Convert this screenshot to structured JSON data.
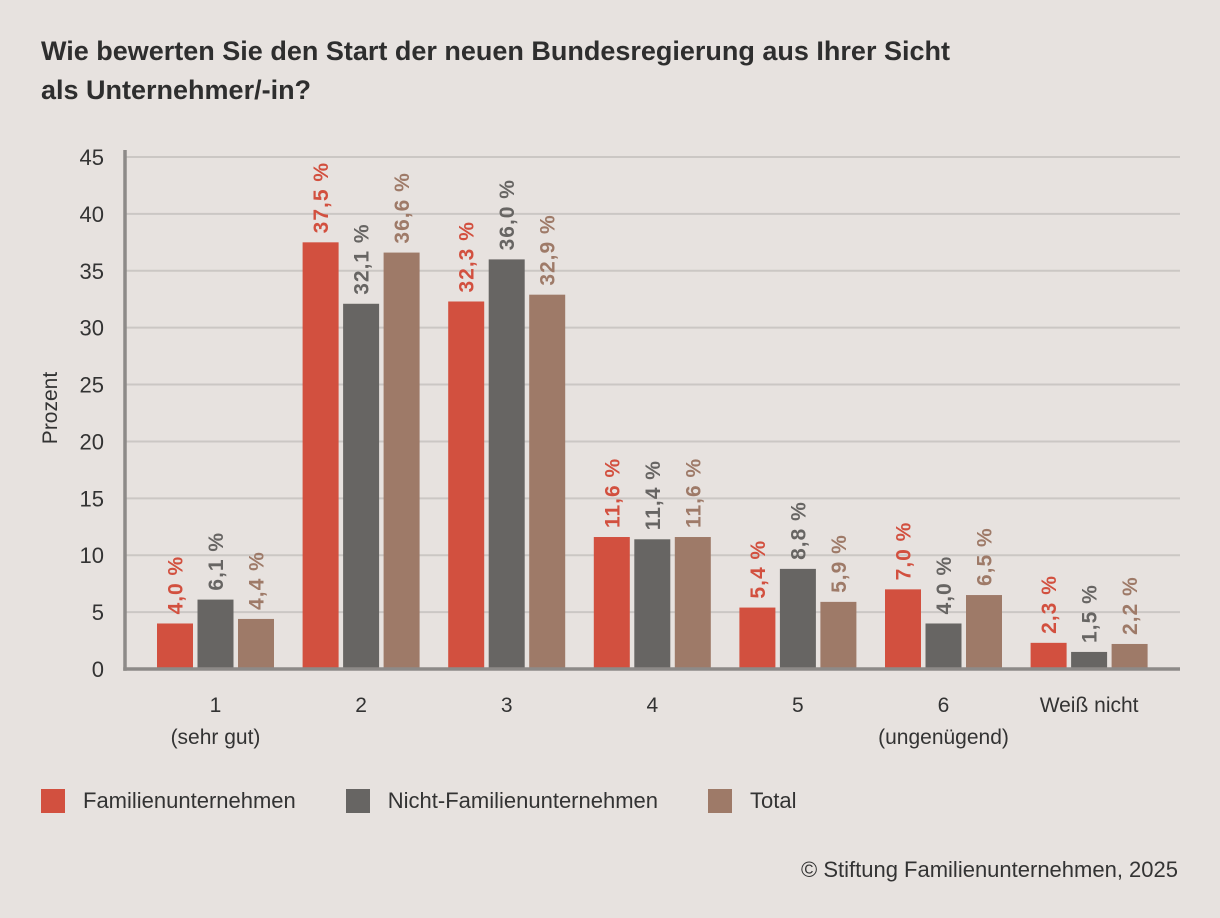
{
  "colors": {
    "background": "#e7e2df",
    "text": "#333333",
    "grid": "#cbc7c4",
    "axis": "#8d8a88"
  },
  "chart_data": {
    "type": "bar",
    "title": "Wie bewerten Sie den Start der neuen Bundesregierung aus Ihrer Sicht als Unternehmer/-in?",
    "ylabel": "Prozent",
    "ylim": [
      0,
      45
    ],
    "yticks": [
      0,
      5,
      10,
      15,
      20,
      25,
      30,
      35,
      40,
      45
    ],
    "grid": true,
    "legend_position": "bottom",
    "categories": [
      "1",
      "2",
      "3",
      "4",
      "5",
      "6",
      "Weiß nicht"
    ],
    "category_sublabels": [
      "(sehr gut)",
      "",
      "",
      "",
      "",
      "(ungenügend)",
      ""
    ],
    "series": [
      {
        "name": "Familienunternehmen",
        "color": "#d2503f",
        "values": [
          4.0,
          37.5,
          32.3,
          11.6,
          5.4,
          7.0,
          2.3
        ],
        "labels": [
          "4,0 %",
          "37,5 %",
          "32,3 %",
          "11,6 %",
          "5,4 %",
          "7,0 %",
          "2,3 %"
        ]
      },
      {
        "name": "Nicht-Familienunternehmen",
        "color": "#676563",
        "values": [
          6.1,
          32.1,
          36.0,
          11.4,
          8.8,
          4.0,
          1.5
        ],
        "labels": [
          "6,1 %",
          "32,1 %",
          "36,0 %",
          "11,4 %",
          "8,8 %",
          "4,0 %",
          "1,5 %"
        ]
      },
      {
        "name": "Total",
        "color": "#9e7a68",
        "values": [
          4.4,
          36.6,
          32.9,
          11.6,
          5.9,
          6.5,
          2.2
        ],
        "labels": [
          "4,4 %",
          "36,6 %",
          "32,9 %",
          "11,6 %",
          "5,9 %",
          "6,5 %",
          "2,2 %"
        ]
      }
    ]
  },
  "footer": {
    "credit": "© Stiftung Familienunternehmen, 2025"
  }
}
